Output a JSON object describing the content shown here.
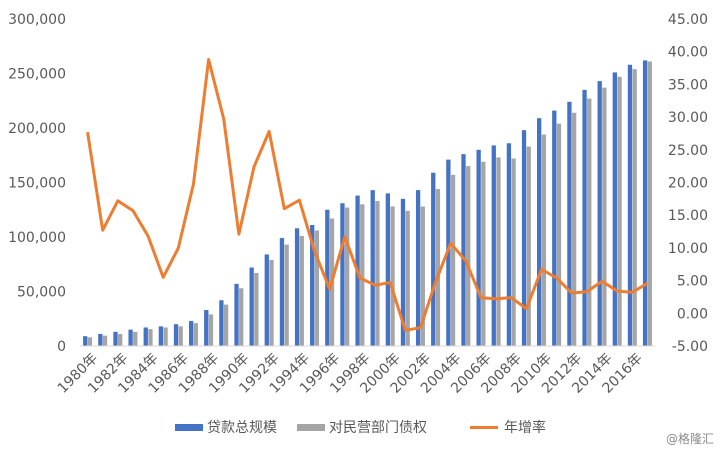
{
  "chart_data": {
    "type": "bar",
    "x": [
      "1980年",
      "1981年",
      "1982年",
      "1983年",
      "1984年",
      "1985年",
      "1986年",
      "1987年",
      "1988年",
      "1989年",
      "1990年",
      "1991年",
      "1992年",
      "1993年",
      "1994年",
      "1995年",
      "1996年",
      "1997年",
      "1998年",
      "1999年",
      "2000年",
      "2001年",
      "2002年",
      "2003年",
      "2004年",
      "2005年",
      "2006年",
      "2007年",
      "2008年",
      "2009年",
      "2010年",
      "2011年",
      "2012年",
      "2013年",
      "2014年",
      "2015年",
      "2016年",
      "2017年"
    ],
    "x_tick_labels": [
      "1980年",
      "1982年",
      "1984年",
      "1986年",
      "1988年",
      "1990年",
      "1992年",
      "1994年",
      "1996年",
      "1998年",
      "2000年",
      "2002年",
      "2004年",
      "2006年",
      "2008年",
      "2010年",
      "2012年",
      "2014年",
      "2016年"
    ],
    "series": [
      {
        "name": "贷款总规模",
        "kind": "bar",
        "axis": "left",
        "color": "#4472C4",
        "values": [
          9000,
          11000,
          13000,
          15000,
          17000,
          18000,
          20000,
          23000,
          33000,
          42000,
          57000,
          72000,
          84000,
          99000,
          108000,
          111000,
          125000,
          131000,
          138000,
          143000,
          140000,
          135000,
          143000,
          159000,
          171000,
          176000,
          180000,
          184000,
          186000,
          198000,
          209000,
          216000,
          224000,
          235000,
          243000,
          251000,
          258000,
          262000
        ]
      },
      {
        "name": "对民营部门债权",
        "kind": "bar",
        "axis": "left",
        "color": "#A5A5A5",
        "values": [
          8000,
          9500,
          11000,
          13000,
          15500,
          17000,
          18000,
          21000,
          29000,
          38000,
          53000,
          67000,
          79000,
          93000,
          101000,
          106000,
          117000,
          127000,
          130000,
          133000,
          128000,
          124000,
          128000,
          144000,
          157000,
          165000,
          169000,
          173000,
          172000,
          183000,
          194000,
          204000,
          214000,
          227000,
          237000,
          247000,
          254000,
          261000
        ]
      },
      {
        "name": "年增率",
        "kind": "line",
        "axis": "right",
        "color": "#ED7D31",
        "values": [
          27.7,
          12.7,
          17.2,
          15.7,
          11.8,
          5.5,
          10.0,
          19.8,
          38.8,
          29.7,
          12.1,
          22.4,
          27.8,
          16.0,
          17.3,
          9.5,
          3.7,
          11.7,
          5.4,
          4.3,
          4.7,
          -2.6,
          -2.2,
          4.8,
          10.7,
          8.0,
          2.4,
          2.2,
          2.4,
          0.7,
          6.7,
          5.4,
          3.1,
          3.3,
          4.9,
          3.4,
          3.2,
          4.6
        ]
      }
    ],
    "y_left": {
      "min": 0,
      "max": 300000,
      "step": 50000
    },
    "y_right": {
      "min": -5,
      "max": 45,
      "step": 5
    },
    "y_left_ticks": [
      "0",
      "50,000",
      "100,000",
      "150,000",
      "200,000",
      "250,000",
      "300,000"
    ],
    "y_right_ticks": [
      "-5.00",
      "0.00",
      "5.00",
      "10.00",
      "15.00",
      "20.00",
      "25.00",
      "30.00",
      "35.00",
      "40.00",
      "45.00"
    ],
    "grid": false,
    "legend_position": "bottom"
  },
  "watermark": "@格隆汇"
}
